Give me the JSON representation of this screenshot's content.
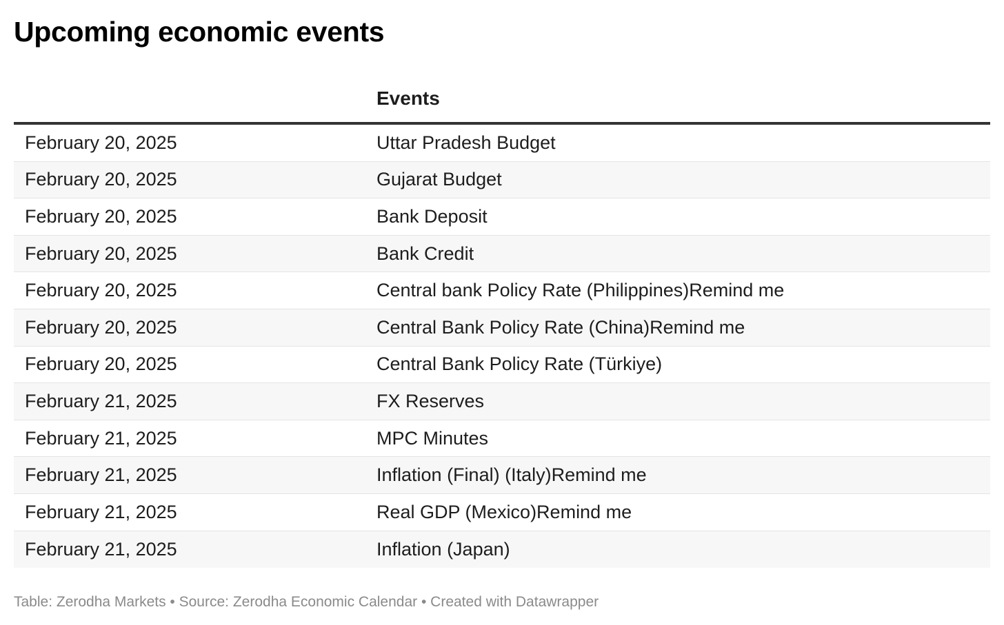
{
  "chart_data": {
    "type": "table",
    "title": "Upcoming economic events",
    "columns": [
      "",
      "Events"
    ],
    "rows": [
      {
        "date": "February 20, 2025",
        "event": "Uttar Pradesh Budget"
      },
      {
        "date": "February 20, 2025",
        "event": "Gujarat Budget"
      },
      {
        "date": "February 20, 2025",
        "event": "Bank Deposit"
      },
      {
        "date": "February 20, 2025",
        "event": "Bank Credit"
      },
      {
        "date": "February 20, 2025",
        "event": "Central bank Policy Rate (Philippines)Remind me"
      },
      {
        "date": "February 20, 2025",
        "event": "Central Bank Policy Rate (China)Remind me"
      },
      {
        "date": "February 20, 2025",
        "event": "Central Bank Policy Rate (Türkiye)"
      },
      {
        "date": "February 21, 2025",
        "event": "FX Reserves"
      },
      {
        "date": "February 21, 2025",
        "event": "MPC Minutes"
      },
      {
        "date": "February 21, 2025",
        "event": "Inflation (Final) (Italy)Remind me"
      },
      {
        "date": "February 21, 2025",
        "event": "Real GDP (Mexico)Remind me"
      },
      {
        "date": "February 21, 2025",
        "event": "Inflation (Japan)"
      }
    ],
    "footer": "Table: Zerodha Markets • Source: Zerodha Economic Calendar • Created with Datawrapper"
  },
  "colors": {
    "row_alt": "#f7f7f7",
    "header_rule": "#333333",
    "row_rule": "#e4e4e4",
    "footer_text": "#8a8a8a"
  }
}
